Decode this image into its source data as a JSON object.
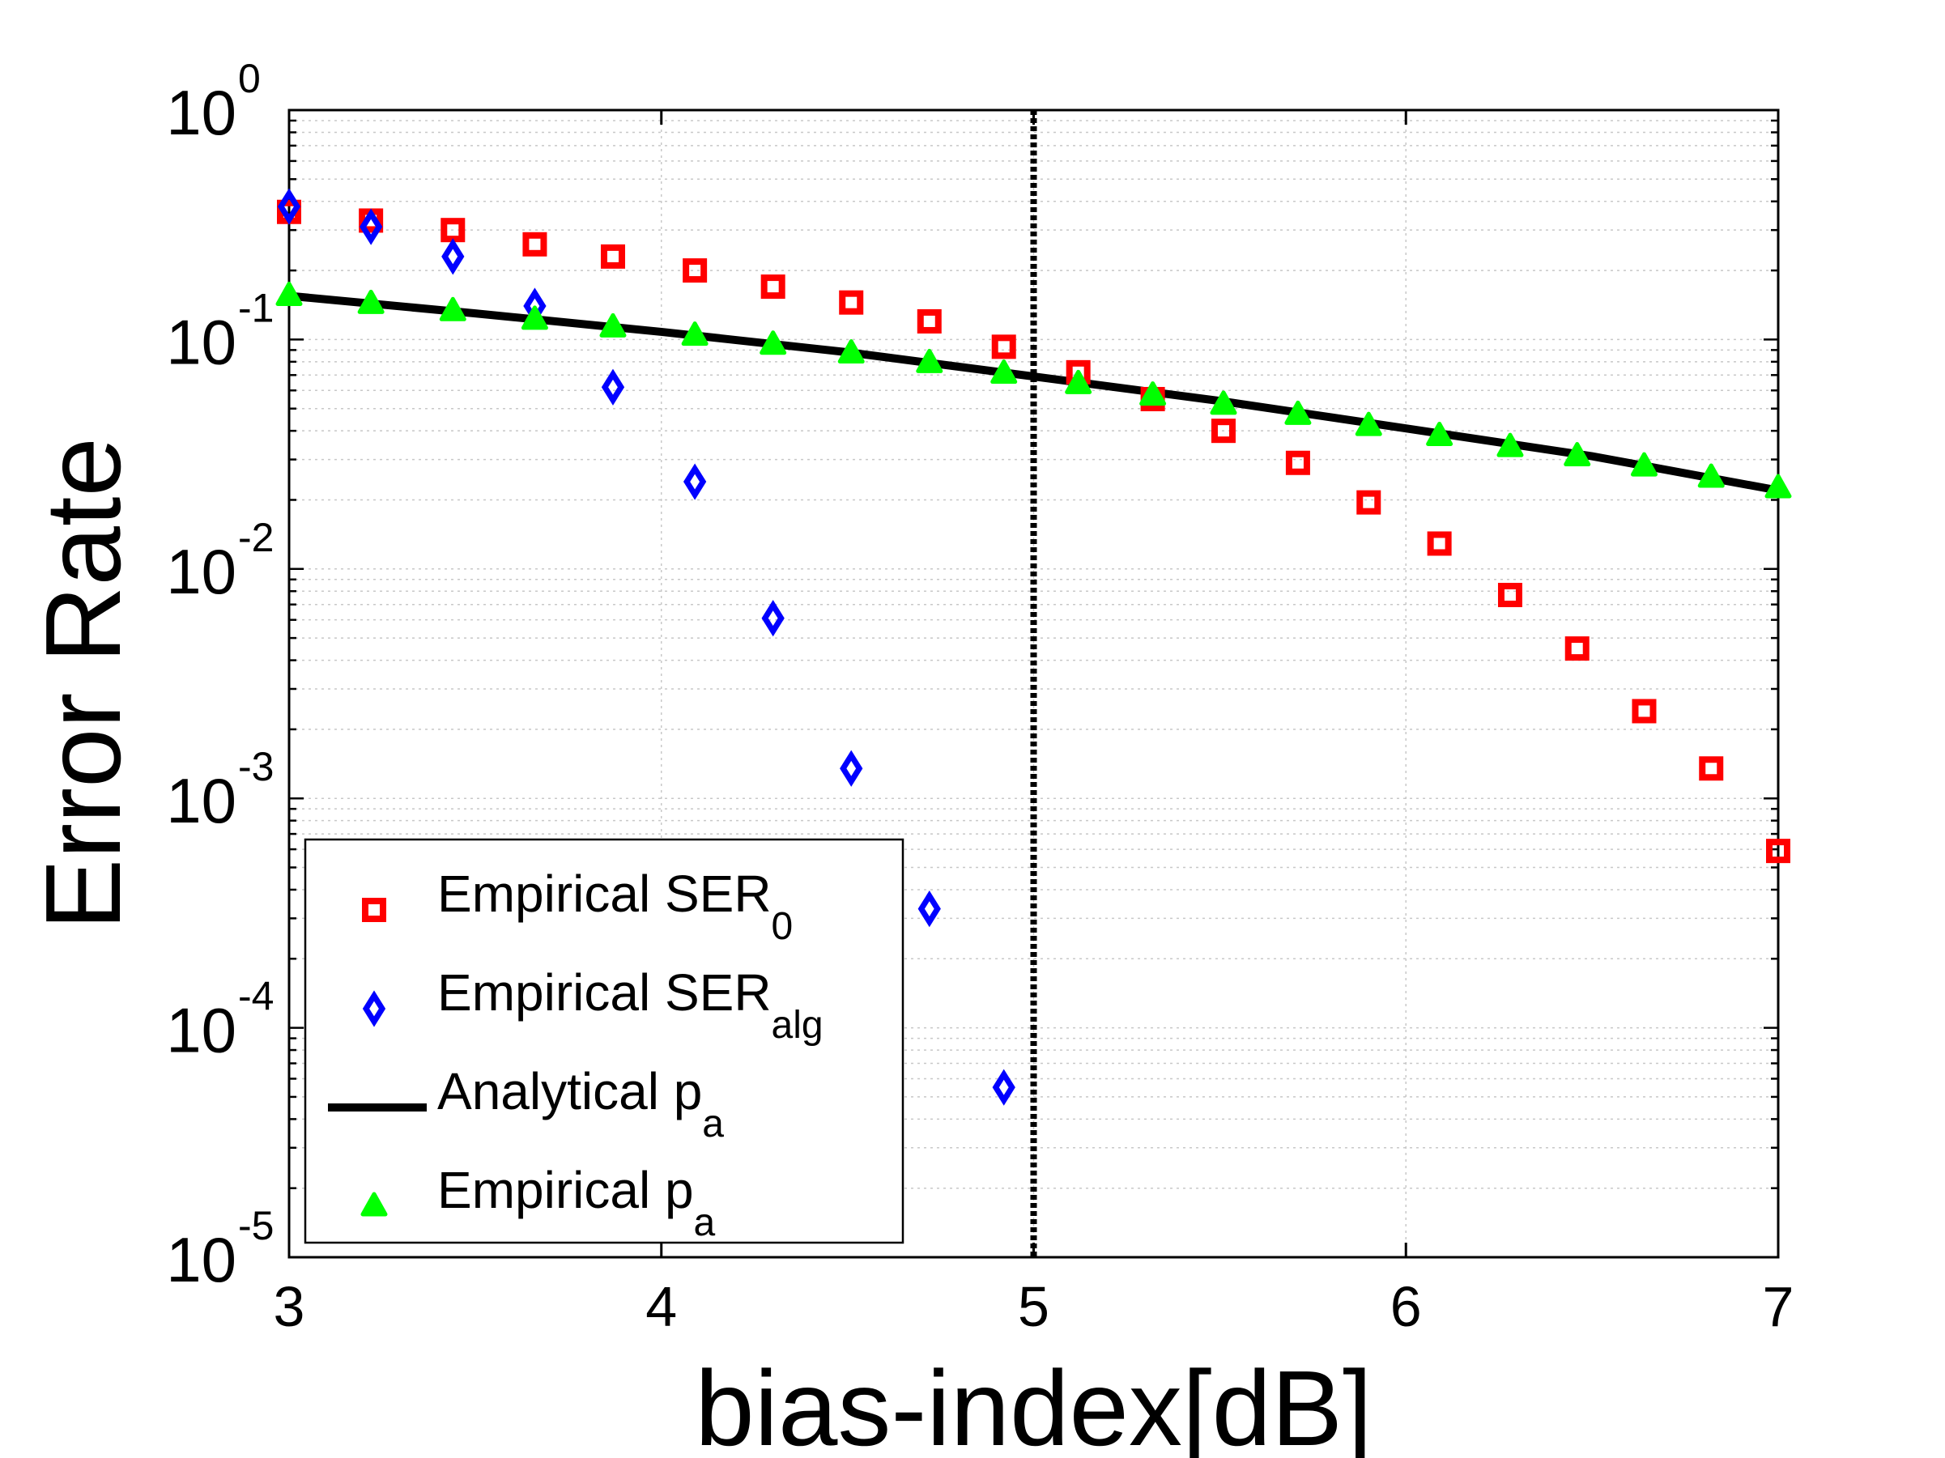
{
  "chart_data": {
    "type": "scatter",
    "title": "",
    "xlabel": "bias-index[dB]",
    "ylabel": "Error Rate",
    "xlim": [
      3,
      7
    ],
    "ylim": [
      1e-05,
      1
    ],
    "yscale": "log",
    "grid": true,
    "x_ticks": [
      {
        "value": 3,
        "label": "3"
      },
      {
        "value": 4,
        "label": "4"
      },
      {
        "value": 5,
        "label": "5"
      },
      {
        "value": 6,
        "label": "6"
      },
      {
        "value": 7,
        "label": "7"
      }
    ],
    "y_ticks": [
      {
        "value": 1,
        "base": "10",
        "exp": "0"
      },
      {
        "value": 0.1,
        "base": "10",
        "exp": "-1"
      },
      {
        "value": 0.01,
        "base": "10",
        "exp": "-2"
      },
      {
        "value": 0.001,
        "base": "10",
        "exp": "-3"
      },
      {
        "value": 0.0001,
        "base": "10",
        "exp": "-4"
      },
      {
        "value": 1e-05,
        "base": "10",
        "exp": "-5"
      }
    ],
    "vertical_line": {
      "x": 5,
      "style": "dotted",
      "color": "#000000"
    },
    "legend_position": "bottom-left",
    "series": [
      {
        "name": "Empirical SER",
        "subscript": "0",
        "marker": "square",
        "color": "#ff0000",
        "x": [
          3.0,
          3.22,
          3.44,
          3.66,
          3.87,
          4.09,
          4.3,
          4.51,
          4.72,
          4.92,
          5.12,
          5.32,
          5.51,
          5.71,
          5.9,
          6.09,
          6.28,
          6.46,
          6.64,
          6.82,
          7.0
        ],
        "y": [
          0.36,
          0.33,
          0.3,
          0.26,
          0.23,
          0.2,
          0.17,
          0.145,
          0.12,
          0.093,
          0.072,
          0.055,
          0.04,
          0.029,
          0.0195,
          0.0129,
          0.0077,
          0.0045,
          0.0024,
          0.00135,
          0.00059
        ]
      },
      {
        "name": "Empirical SER",
        "subscript": "alg",
        "marker": "diamond",
        "color": "#0000ff",
        "x": [
          3.0,
          3.22,
          3.44,
          3.66,
          3.87,
          4.09,
          4.3,
          4.51,
          4.72,
          4.92
        ],
        "y": [
          0.38,
          0.31,
          0.23,
          0.14,
          0.062,
          0.024,
          0.0061,
          0.00135,
          0.00033,
          5.5e-05
        ]
      },
      {
        "name": "Analytical p",
        "subscript": "a",
        "marker": "line",
        "color": "#000000",
        "x": [
          3.0,
          3.5,
          4.0,
          4.5,
          5.0,
          5.5,
          6.0,
          6.5,
          7.0
        ],
        "y": [
          0.155,
          0.13,
          0.108,
          0.088,
          0.069,
          0.054,
          0.041,
          0.031,
          0.022
        ]
      },
      {
        "name": "Empirical p",
        "subscript": "a",
        "marker": "triangle",
        "color": "#00ff00",
        "x": [
          3.0,
          3.22,
          3.44,
          3.66,
          3.87,
          4.09,
          4.3,
          4.51,
          4.72,
          4.92,
          5.12,
          5.32,
          5.51,
          5.71,
          5.9,
          6.09,
          6.28,
          6.46,
          6.64,
          6.82,
          7.0
        ],
        "y": [
          0.155,
          0.143,
          0.133,
          0.122,
          0.113,
          0.104,
          0.095,
          0.087,
          0.079,
          0.071,
          0.064,
          0.057,
          0.052,
          0.047,
          0.042,
          0.038,
          0.034,
          0.031,
          0.028,
          0.025,
          0.0225
        ]
      }
    ]
  }
}
